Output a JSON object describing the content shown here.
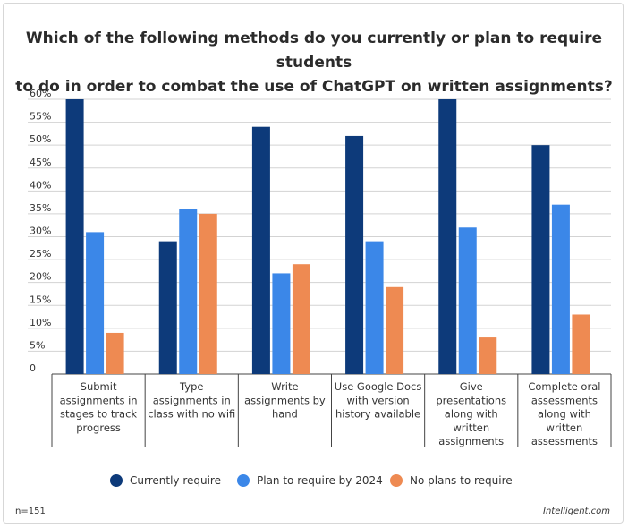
{
  "chart_data": {
    "type": "bar",
    "title": "Which of the following methods do you currently or plan to require students to do in order to combat the use of ChatGPT on written assignments?",
    "title_lines": [
      "Which of the following methods do you currently or plan to require students",
      "to do in order to combat the use of ChatGPT on written assignments?"
    ],
    "categories": [
      [
        "Submit",
        "assignments in",
        "stages to track",
        "progress"
      ],
      [
        "Type",
        "assignments in",
        "class with no wifi"
      ],
      [
        "Write",
        "assignments by",
        "hand"
      ],
      [
        "Use Google Docs",
        "with version",
        "history available"
      ],
      [
        "Give",
        "presentations",
        "along with",
        "written",
        "assignments"
      ],
      [
        "Complete oral",
        "assessments",
        "along with",
        "written",
        "assessments"
      ]
    ],
    "series": [
      {
        "name": "Currently require",
        "color": "#0d3a7a",
        "values": [
          60,
          29,
          54,
          52,
          60,
          50
        ]
      },
      {
        "name": "Plan to require by 2024",
        "color": "#3b87e8",
        "values": [
          31,
          36,
          22,
          29,
          32,
          37
        ]
      },
      {
        "name": "No plans to require",
        "color": "#ee8a52",
        "values": [
          9,
          35,
          24,
          19,
          8,
          13
        ]
      }
    ],
    "yticks": [
      "0",
      "5%",
      "10%",
      "15%",
      "20%",
      "25%",
      "30%",
      "35%",
      "40%",
      "45%",
      "50%",
      "55%",
      "60%"
    ],
    "ylim": [
      0,
      60
    ],
    "grid": true,
    "legend_position": "bottom-center"
  },
  "footer": {
    "sample_size": "n=151",
    "source": "Intelligent.com"
  }
}
